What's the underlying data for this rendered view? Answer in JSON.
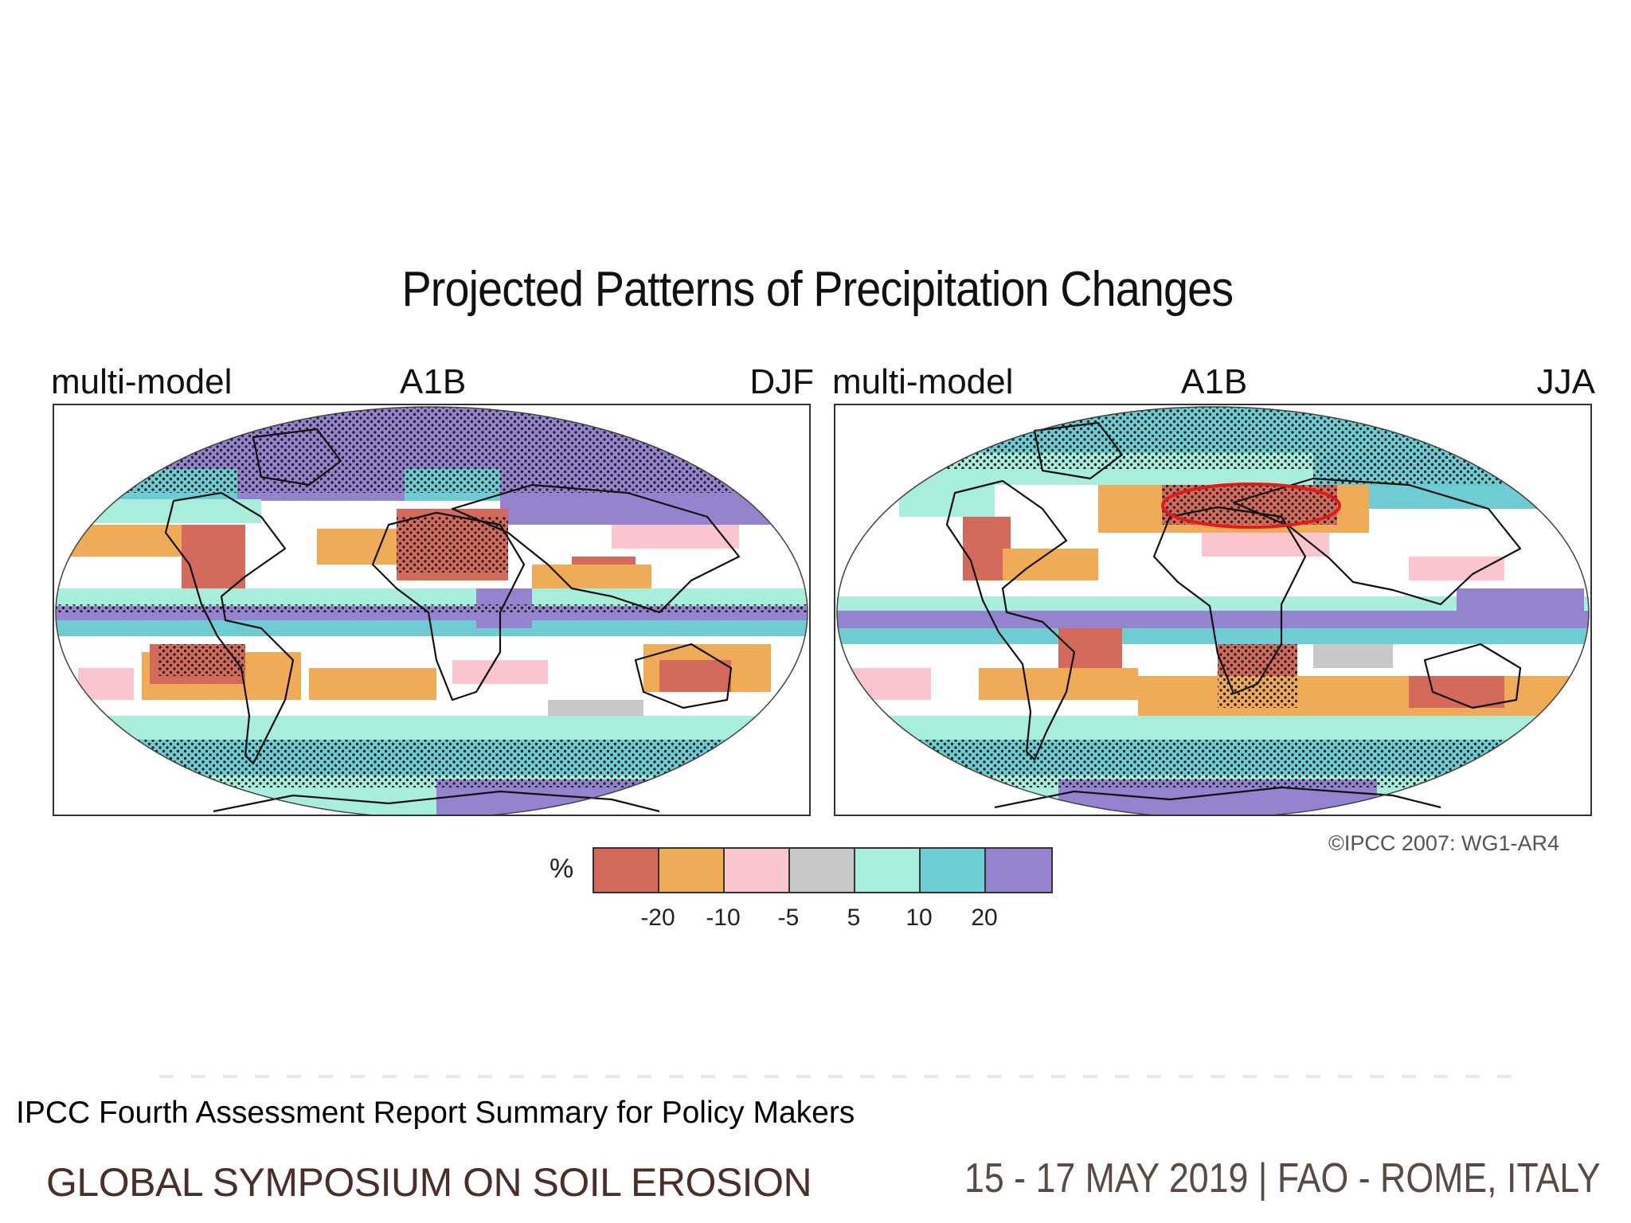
{
  "title": "Projected Patterns of Precipitation Changes",
  "panels": [
    {
      "model": "multi-model",
      "scenario": "A1B",
      "season": "DJF"
    },
    {
      "model": "multi-model",
      "scenario": "A1B",
      "season": "JJA"
    }
  ],
  "credit": "©IPCC 2007: WG1-AR4",
  "legend": {
    "unit": "%",
    "colors": [
      "#d46a5c",
      "#f0ab56",
      "#f9c5cf",
      "#c8c8c8",
      "#a9eddd",
      "#6ecdd2",
      "#9683cf"
    ],
    "ticks": [
      "-20",
      "-10",
      "-5",
      "5",
      "10",
      "20"
    ]
  },
  "highlight_color": "#e01b1b",
  "source": "IPCC Fourth Assessment Report Summary for Policy Makers",
  "footer": {
    "symposium": "GLOBAL SYMPOSIUM ON SOIL EROSION",
    "event_info": "15 - 17 MAY 2019 | FAO - ROME, ITALY"
  }
}
